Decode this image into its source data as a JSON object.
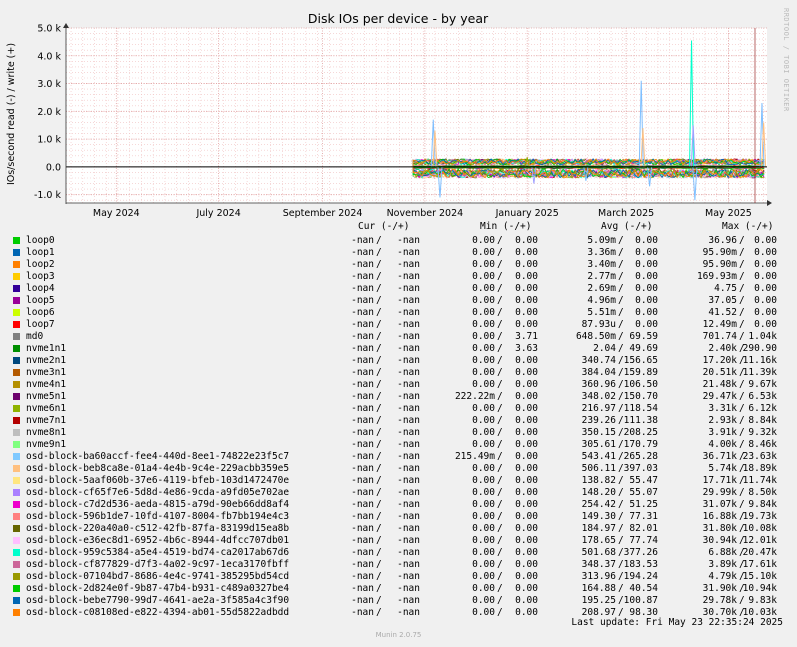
{
  "chart_data": {
    "type": "line",
    "title": "Disk IOs per device - by year",
    "ylabel": "IOs/second read (-) / write (+)",
    "ylim": [
      -1300,
      5000
    ],
    "yticks": [
      {
        "value": 5000,
        "label": "5.0 k"
      },
      {
        "value": 4000,
        "label": "4.0 k"
      },
      {
        "value": 3000,
        "label": "3.0 k"
      },
      {
        "value": 2000,
        "label": "2.0 k"
      },
      {
        "value": 1000,
        "label": "1.0 k"
      },
      {
        "value": 0,
        "label": "0.0"
      },
      {
        "value": -1000,
        "label": "-1.0 k"
      }
    ],
    "xrange": [
      "2024-04-01",
      "2025-05-24"
    ],
    "xticks": [
      {
        "date": "2024-05-01",
        "label": "May 2024"
      },
      {
        "date": "2024-07-01",
        "label": "July 2024"
      },
      {
        "date": "2024-09-01",
        "label": "September 2024"
      },
      {
        "date": "2024-11-01",
        "label": "November 2024"
      },
      {
        "date": "2025-01-01",
        "label": "January 2025"
      },
      {
        "date": "2025-03-01",
        "label": "March 2025"
      },
      {
        "date": "2025-05-01",
        "label": "May 2025"
      }
    ],
    "data_start": "2024-10-25",
    "spikes": [
      {
        "date": "2024-11-06",
        "value": 1700,
        "color": "#7fbfff"
      },
      {
        "date": "2024-11-07",
        "value": 1300,
        "color": "#ffbf7f"
      },
      {
        "date": "2025-01-01",
        "value": 350,
        "color": "#a0a000"
      },
      {
        "date": "2025-03-10",
        "value": 3100,
        "color": "#7fbfff"
      },
      {
        "date": "2025-03-11",
        "value": 1400,
        "color": "#ffbf7f"
      },
      {
        "date": "2025-04-09",
        "value": 4550,
        "color": "#00ffcc"
      },
      {
        "date": "2025-04-10",
        "value": 1500,
        "color": "#a0a0ff"
      },
      {
        "date": "2025-05-21",
        "value": 2300,
        "color": "#7fbfff"
      },
      {
        "date": "2025-05-22",
        "value": 1600,
        "color": "#ffbf7f"
      }
    ],
    "dips": [
      {
        "date": "2024-11-10",
        "value": -1100,
        "color": "#7fbfff"
      },
      {
        "date": "2025-01-05",
        "value": -600,
        "color": "#a0a0ff"
      },
      {
        "date": "2025-02-05",
        "value": -500,
        "color": "#7fbfff"
      },
      {
        "date": "2025-03-15",
        "value": -700,
        "color": "#7fbfff"
      },
      {
        "date": "2025-04-11",
        "value": -1200,
        "color": "#7fbfff"
      }
    ],
    "columns": [
      "Cur (-/+)",
      "Min (-/+)",
      "Avg (-/+)",
      "Max (-/+)"
    ],
    "legend": [
      {
        "name": "loop0",
        "color": "#00cc00",
        "cur": [
          "-nan",
          "-nan"
        ],
        "min": [
          "0.00",
          "0.00"
        ],
        "avg": [
          "5.09m",
          "0.00"
        ],
        "max": [
          "36.96",
          "0.00"
        ]
      },
      {
        "name": "loop1",
        "color": "#0066b3",
        "cur": [
          "-nan",
          "-nan"
        ],
        "min": [
          "0.00",
          "0.00"
        ],
        "avg": [
          "3.36m",
          "0.00"
        ],
        "max": [
          "95.90m",
          "0.00"
        ]
      },
      {
        "name": "loop2",
        "color": "#ff8000",
        "cur": [
          "-nan",
          "-nan"
        ],
        "min": [
          "0.00",
          "0.00"
        ],
        "avg": [
          "3.40m",
          "0.00"
        ],
        "max": [
          "95.90m",
          "0.00"
        ]
      },
      {
        "name": "loop3",
        "color": "#ffcc00",
        "cur": [
          "-nan",
          "-nan"
        ],
        "min": [
          "0.00",
          "0.00"
        ],
        "avg": [
          "2.77m",
          "0.00"
        ],
        "max": [
          "169.93m",
          "0.00"
        ]
      },
      {
        "name": "loop4",
        "color": "#330099",
        "cur": [
          "-nan",
          "-nan"
        ],
        "min": [
          "0.00",
          "0.00"
        ],
        "avg": [
          "2.69m",
          "0.00"
        ],
        "max": [
          "4.75",
          "0.00"
        ]
      },
      {
        "name": "loop5",
        "color": "#990099",
        "cur": [
          "-nan",
          "-nan"
        ],
        "min": [
          "0.00",
          "0.00"
        ],
        "avg": [
          "4.96m",
          "0.00"
        ],
        "max": [
          "37.05",
          "0.00"
        ]
      },
      {
        "name": "loop6",
        "color": "#ccff00",
        "cur": [
          "-nan",
          "-nan"
        ],
        "min": [
          "0.00",
          "0.00"
        ],
        "avg": [
          "5.51m",
          "0.00"
        ],
        "max": [
          "41.52",
          "0.00"
        ]
      },
      {
        "name": "loop7",
        "color": "#ff0000",
        "cur": [
          "-nan",
          "-nan"
        ],
        "min": [
          "0.00",
          "0.00"
        ],
        "avg": [
          "87.93u",
          "0.00"
        ],
        "max": [
          "12.49m",
          "0.00"
        ]
      },
      {
        "name": "md0",
        "color": "#808080",
        "cur": [
          "-nan",
          "-nan"
        ],
        "min": [
          "0.00",
          "3.71"
        ],
        "avg": [
          "648.50m",
          "69.59"
        ],
        "max": [
          "701.74",
          "1.04k"
        ]
      },
      {
        "name": "nvme1n1",
        "color": "#008f00",
        "cur": [
          "-nan",
          "-nan"
        ],
        "min": [
          "0.00",
          "3.63"
        ],
        "avg": [
          "2.04",
          "49.69"
        ],
        "max": [
          "2.40k",
          "290.90"
        ]
      },
      {
        "name": "nvme2n1",
        "color": "#00487d",
        "cur": [
          "-nan",
          "-nan"
        ],
        "min": [
          "0.00",
          "0.00"
        ],
        "avg": [
          "340.74",
          "156.65"
        ],
        "max": [
          "17.20k",
          "11.16k"
        ]
      },
      {
        "name": "nvme3n1",
        "color": "#b35a00",
        "cur": [
          "-nan",
          "-nan"
        ],
        "min": [
          "0.00",
          "0.00"
        ],
        "avg": [
          "384.04",
          "159.89"
        ],
        "max": [
          "20.51k",
          "11.39k"
        ]
      },
      {
        "name": "nvme4n1",
        "color": "#b38f00",
        "cur": [
          "-nan",
          "-nan"
        ],
        "min": [
          "0.00",
          "0.00"
        ],
        "avg": [
          "360.96",
          "106.50"
        ],
        "max": [
          "21.48k",
          "9.67k"
        ]
      },
      {
        "name": "nvme5n1",
        "color": "#6b006b",
        "cur": [
          "-nan",
          "-nan"
        ],
        "min": [
          "222.22m",
          "0.00"
        ],
        "avg": [
          "348.02",
          "150.70"
        ],
        "max": [
          "29.47k",
          "6.53k"
        ]
      },
      {
        "name": "nvme6n1",
        "color": "#8fb300",
        "cur": [
          "-nan",
          "-nan"
        ],
        "min": [
          "0.00",
          "0.00"
        ],
        "avg": [
          "216.97",
          "118.54"
        ],
        "max": [
          "3.31k",
          "6.12k"
        ]
      },
      {
        "name": "nvme7n1",
        "color": "#b30000",
        "cur": [
          "-nan",
          "-nan"
        ],
        "min": [
          "0.00",
          "0.00"
        ],
        "avg": [
          "239.26",
          "111.38"
        ],
        "max": [
          "2.93k",
          "8.84k"
        ]
      },
      {
        "name": "nvme8n1",
        "color": "#bebebe",
        "cur": [
          "-nan",
          "-nan"
        ],
        "min": [
          "0.00",
          "0.00"
        ],
        "avg": [
          "350.15",
          "208.25"
        ],
        "max": [
          "3.91k",
          "9.32k"
        ]
      },
      {
        "name": "nvme9n1",
        "color": "#80ff80",
        "cur": [
          "-nan",
          "-nan"
        ],
        "min": [
          "0.00",
          "0.00"
        ],
        "avg": [
          "305.61",
          "170.79"
        ],
        "max": [
          "4.00k",
          "8.46k"
        ]
      },
      {
        "name": "osd-block-ba60accf-fee4-440d-8ee1-74822e23f5c7",
        "color": "#80c9ff",
        "cur": [
          "-nan",
          "-nan"
        ],
        "min": [
          "215.49m",
          "0.00"
        ],
        "avg": [
          "543.41",
          "265.28"
        ],
        "max": [
          "36.71k",
          "23.63k"
        ]
      },
      {
        "name": "osd-block-beb8ca8e-01a4-4e4b-9c4e-229acbb359e5",
        "color": "#ffc080",
        "cur": [
          "-nan",
          "-nan"
        ],
        "min": [
          "0.00",
          "0.00"
        ],
        "avg": [
          "506.11",
          "397.03"
        ],
        "max": [
          "5.74k",
          "18.89k"
        ]
      },
      {
        "name": "osd-block-5aaf060b-37e6-4119-bfeb-103d1472470e",
        "color": "#ffe680",
        "cur": [
          "-nan",
          "-nan"
        ],
        "min": [
          "0.00",
          "0.00"
        ],
        "avg": [
          "138.82",
          "55.47"
        ],
        "max": [
          "17.71k",
          "11.74k"
        ]
      },
      {
        "name": "osd-block-cf65f7e6-5d8d-4e86-9cda-a9fd05e702ae",
        "color": "#aa80ff",
        "cur": [
          "-nan",
          "-nan"
        ],
        "min": [
          "0.00",
          "0.00"
        ],
        "avg": [
          "148.20",
          "55.07"
        ],
        "max": [
          "29.99k",
          "8.50k"
        ]
      },
      {
        "name": "osd-block-c7d2d536-aeda-4815-a79d-90eb66dd8af4",
        "color": "#ee00cc",
        "cur": [
          "-nan",
          "-nan"
        ],
        "min": [
          "0.00",
          "0.00"
        ],
        "avg": [
          "254.42",
          "51.25"
        ],
        "max": [
          "31.07k",
          "9.84k"
        ]
      },
      {
        "name": "osd-block-596b1de7-10fd-4107-8004-fb7bb194e4c3",
        "color": "#ff8080",
        "cur": [
          "-nan",
          "-nan"
        ],
        "min": [
          "0.00",
          "0.00"
        ],
        "avg": [
          "149.30",
          "77.31"
        ],
        "max": [
          "16.88k",
          "19.73k"
        ]
      },
      {
        "name": "osd-block-220a40a0-c512-42fb-87fa-83199d15ea8b",
        "color": "#666600",
        "cur": [
          "-nan",
          "-nan"
        ],
        "min": [
          "0.00",
          "0.00"
        ],
        "avg": [
          "184.97",
          "82.01"
        ],
        "max": [
          "31.80k",
          "10.08k"
        ]
      },
      {
        "name": "osd-block-e36ec8d1-6952-4b6c-8944-4dfcc707db01",
        "color": "#ffbfff",
        "cur": [
          "-nan",
          "-nan"
        ],
        "min": [
          "0.00",
          "0.00"
        ],
        "avg": [
          "178.65",
          "77.74"
        ],
        "max": [
          "30.94k",
          "12.01k"
        ]
      },
      {
        "name": "osd-block-959c5384-a5e4-4519-bd74-ca2017ab67d6",
        "color": "#00ffcc",
        "cur": [
          "-nan",
          "-nan"
        ],
        "min": [
          "0.00",
          "0.00"
        ],
        "avg": [
          "501.68",
          "377.26"
        ],
        "max": [
          "6.88k",
          "20.47k"
        ]
      },
      {
        "name": "osd-block-cf877829-d7f3-4a02-9c97-1eca3170fbff",
        "color": "#cc6699",
        "cur": [
          "-nan",
          "-nan"
        ],
        "min": [
          "0.00",
          "0.00"
        ],
        "avg": [
          "348.37",
          "183.53"
        ],
        "max": [
          "3.89k",
          "17.61k"
        ]
      },
      {
        "name": "osd-block-07104bd7-8686-4e4c-9741-385295bd54cd",
        "color": "#999900",
        "cur": [
          "-nan",
          "-nan"
        ],
        "min": [
          "0.00",
          "0.00"
        ],
        "avg": [
          "313.96",
          "194.24"
        ],
        "max": [
          "4.79k",
          "15.10k"
        ]
      },
      {
        "name": "osd-block-2d824e0f-9b87-47b4-b931-c489a0327be4",
        "color": "#00cc00",
        "cur": [
          "-nan",
          "-nan"
        ],
        "min": [
          "0.00",
          "0.00"
        ],
        "avg": [
          "164.88",
          "40.54"
        ],
        "max": [
          "31.90k",
          "10.94k"
        ]
      },
      {
        "name": "osd-block-bebe7790-99d7-4641-ae2a-3f585a4c3f90",
        "color": "#0066b3",
        "cur": [
          "-nan",
          "-nan"
        ],
        "min": [
          "0.00",
          "0.00"
        ],
        "avg": [
          "195.25",
          "100.87"
        ],
        "max": [
          "29.78k",
          "9.83k"
        ]
      },
      {
        "name": "osd-block-c08108ed-e822-4394-ab01-55d5822adbdd",
        "color": "#ff8000",
        "cur": [
          "-nan",
          "-nan"
        ],
        "min": [
          "0.00",
          "0.00"
        ],
        "avg": [
          "208.97",
          "98.30"
        ],
        "max": [
          "30.70k",
          "10.03k"
        ]
      }
    ],
    "last_update": "Last update: Fri May 23 22:35:24 2025",
    "footer": "Munin 2.0.75",
    "watermark": "RRDTOOL / TOBI OETIKER"
  }
}
